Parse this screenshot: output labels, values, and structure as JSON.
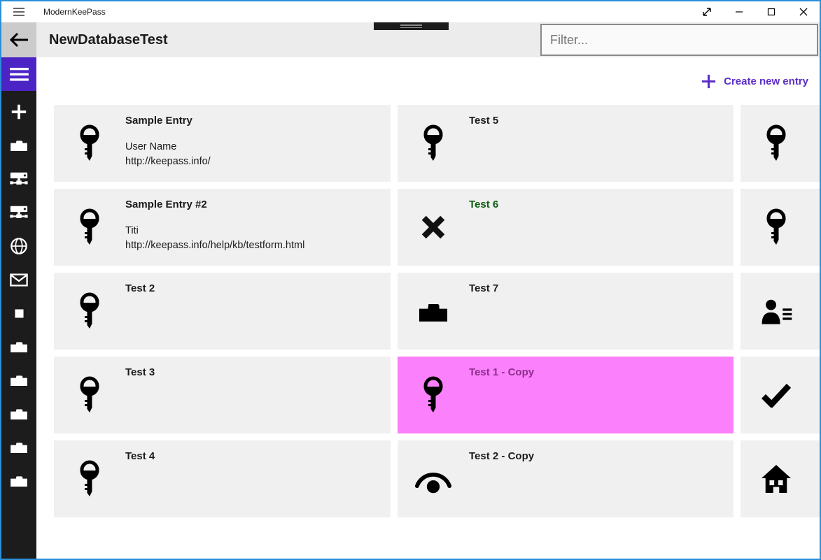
{
  "titlebar": {
    "app_title": "ModernKeePass",
    "controls": [
      {
        "name": "fullscreen-button",
        "icon": "fullscreen-icon"
      },
      {
        "name": "minimize-button",
        "icon": "minimize-icon"
      },
      {
        "name": "maximize-button",
        "icon": "maximize-icon"
      },
      {
        "name": "close-button",
        "icon": "close-icon"
      }
    ]
  },
  "header": {
    "page_title": "NewDatabaseTest",
    "filter": {
      "placeholder": "Filter...",
      "value": ""
    }
  },
  "toolbar": {
    "create_new_entry_label": "Create new entry"
  },
  "sidebar": {
    "menu_icon": "hamburger-icon",
    "items": [
      {
        "icon": "plus-icon"
      },
      {
        "icon": "folder-white-icon"
      },
      {
        "icon": "server-icon"
      },
      {
        "icon": "server-icon"
      },
      {
        "icon": "globe-icon"
      },
      {
        "icon": "mail-icon"
      },
      {
        "icon": "square-icon"
      },
      {
        "icon": "folder-white-icon"
      },
      {
        "icon": "folder-white-icon"
      },
      {
        "icon": "folder-white-icon"
      },
      {
        "icon": "folder-white-icon"
      },
      {
        "icon": "folder-white-icon"
      }
    ]
  },
  "entries": {
    "columns": [
      {
        "cards": [
          {
            "title": "Sample Entry",
            "icon": "key-icon",
            "lines": [
              "User Name",
              "http://keepass.info/"
            ],
            "selected": false
          },
          {
            "title": "Sample Entry #2",
            "icon": "key-icon",
            "lines": [
              "Titi",
              "http://keepass.info/help/kb/testform.html"
            ],
            "selected": false
          },
          {
            "title": "Test 2",
            "icon": "key-icon",
            "lines": [],
            "selected": false
          },
          {
            "title": "Test 3",
            "icon": "key-icon",
            "lines": [],
            "selected": false
          },
          {
            "title": "Test 4",
            "icon": "key-icon",
            "lines": [],
            "selected": false
          }
        ]
      },
      {
        "cards": [
          {
            "title": "Test 5",
            "icon": "key-icon",
            "lines": [],
            "selected": false
          },
          {
            "title": "Test 6",
            "icon": "cross-icon",
            "lines": [],
            "selected": false,
            "title_color": "#0e5c10"
          },
          {
            "title": "Test 7",
            "icon": "folder-black-icon",
            "lines": [],
            "selected": false
          },
          {
            "title": "Test 1 - Copy",
            "icon": "key-icon",
            "lines": [],
            "selected": true,
            "title_color": "#8b2e8b"
          },
          {
            "title": "Test 2 - Copy",
            "icon": "eye-icon",
            "lines": [],
            "selected": false
          }
        ]
      },
      {
        "cards": [
          {
            "title": "",
            "icon": "key-icon",
            "lines": [],
            "selected": false
          },
          {
            "title": "",
            "icon": "key-icon",
            "lines": [],
            "selected": false
          },
          {
            "title": "",
            "icon": "contact-list-icon",
            "lines": [],
            "selected": false
          },
          {
            "title": "",
            "icon": "check-icon",
            "lines": [],
            "selected": false
          },
          {
            "title": "",
            "icon": "home-icon",
            "lines": [],
            "selected": false
          }
        ]
      }
    ]
  },
  "colors": {
    "window_border": "#2990d8",
    "sidebar_bg": "#1c1c1c",
    "menu_button_purple": "#4c24c6",
    "accent_purple": "#5b2dc8",
    "card_bg": "#f0f0f0",
    "selected_card_bg": "#fb80fb",
    "selected_title": "#8b2e8b",
    "green_title": "#0e5c10",
    "header_bg": "#ececec",
    "back_button_bg": "#cbcbcb"
  }
}
